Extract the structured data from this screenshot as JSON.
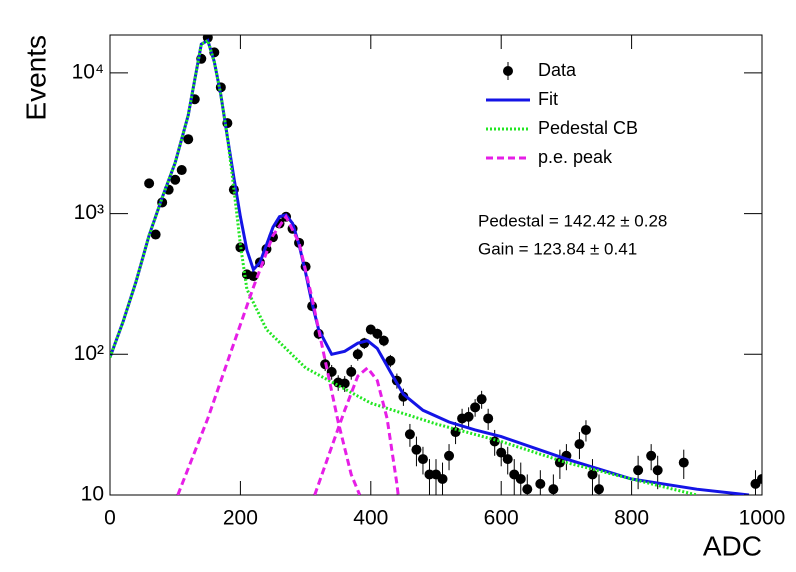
{
  "chart_data": {
    "type": "scatter",
    "xlabel": "ADC",
    "ylabel": "Events",
    "xlim": [
      0,
      1000
    ],
    "xticks": [
      0,
      200,
      400,
      600,
      800,
      1000
    ],
    "ylim": [
      10,
      18600
    ],
    "log_y": true,
    "yticks": [
      10,
      {
        "value": 100,
        "label": "10²"
      },
      {
        "value": 1000,
        "label": "10³"
      },
      {
        "value": 10000,
        "label": "10⁴"
      }
    ],
    "legend": "upper right",
    "annotations": [
      "Pedestal = 142.42 ± 0.28",
      "Gain = 123.84 ± 0.41"
    ],
    "series": [
      {
        "name": "Data",
        "style": "points",
        "color": "#000000",
        "x": [
          60,
          70,
          80,
          90,
          100,
          110,
          120,
          130,
          140,
          150,
          160,
          170,
          180,
          190,
          200,
          210,
          220,
          230,
          240,
          250,
          260,
          270,
          280,
          290,
          300,
          310,
          320,
          330,
          340,
          350,
          360,
          370,
          380,
          390,
          400,
          410,
          420,
          430,
          440,
          450,
          460,
          470,
          480,
          490,
          500,
          510,
          520,
          530,
          540,
          550,
          560,
          570,
          580,
          590,
          600,
          610,
          620,
          630,
          640,
          660,
          680,
          690,
          700,
          720,
          730,
          740,
          750,
          810,
          830,
          840,
          880,
          990,
          1000
        ],
        "values": [
          1640,
          710,
          1200,
          1480,
          1740,
          2040,
          3380,
          6500,
          12600,
          17800,
          14000,
          7900,
          4400,
          1480,
          575,
          370,
          360,
          450,
          560,
          680,
          850,
          950,
          780,
          620,
          420,
          220,
          140,
          85,
          75,
          63,
          62,
          75,
          100,
          120,
          150,
          140,
          125,
          90,
          65,
          50,
          27,
          21,
          18,
          14,
          14,
          13,
          19,
          28,
          35,
          36,
          42,
          48,
          35,
          24,
          20,
          18,
          14,
          13,
          11,
          12,
          11,
          17,
          19,
          23,
          29,
          14,
          11,
          15,
          19,
          15,
          17,
          12,
          13
        ],
        "errors": [
          40,
          27,
          35,
          38,
          42,
          45,
          58,
          81,
          112,
          133,
          118,
          89,
          66,
          38,
          24,
          19,
          19,
          21,
          24,
          26,
          29,
          31,
          28,
          25,
          20,
          15,
          12,
          9,
          9,
          8,
          8,
          9,
          10,
          11,
          12,
          12,
          11,
          9,
          8,
          7,
          5,
          5,
          4,
          4,
          4,
          4,
          4,
          5,
          6,
          6,
          6,
          7,
          6,
          5,
          4,
          4,
          4,
          4,
          3,
          3,
          3,
          4,
          4,
          5,
          5,
          4,
          3,
          4,
          4,
          4,
          4,
          3,
          4
        ]
      },
      {
        "name": "Fit",
        "style": "solid",
        "color": "#1414e6",
        "x": [
          0,
          20,
          40,
          60,
          80,
          100,
          120,
          140,
          150,
          160,
          170,
          180,
          190,
          200,
          210,
          220,
          230,
          240,
          250,
          260,
          270,
          280,
          290,
          300,
          310,
          320,
          340,
          360,
          380,
          395,
          410,
          430,
          450,
          480,
          520,
          560,
          600,
          700,
          800,
          900,
          980
        ],
        "values": [
          95,
          170,
          330,
          700,
          1300,
          2300,
          5000,
          16000,
          17000,
          12000,
          7000,
          3500,
          1800,
          950,
          550,
          400,
          450,
          600,
          800,
          950,
          980,
          850,
          600,
          380,
          230,
          150,
          100,
          105,
          120,
          125,
          110,
          75,
          52,
          40,
          33,
          29,
          26,
          18,
          13,
          11,
          10
        ]
      },
      {
        "name": "Pedestal CB",
        "style": "dotted",
        "color": "#22e622",
        "x": [
          0,
          20,
          40,
          60,
          80,
          100,
          120,
          140,
          150,
          160,
          170,
          180,
          190,
          200,
          210,
          240,
          300,
          350,
          400,
          500,
          600,
          700,
          800,
          900
        ],
        "values": [
          95,
          170,
          330,
          700,
          1300,
          2300,
          5000,
          16000,
          17000,
          12000,
          7000,
          3500,
          1500,
          600,
          290,
          150,
          80,
          60,
          45,
          32,
          24,
          17,
          13,
          10
        ]
      },
      {
        "name": "p.e. peak",
        "style": "dashed",
        "color": "#e61ee6",
        "x": [
          104,
          150,
          190,
          220,
          250,
          270,
          290,
          310,
          330,
          350,
          370,
          383,
          null,
          314,
          340,
          360,
          380,
          395,
          410,
          425,
          440,
          442
        ],
        "values": [
          10,
          35,
          120,
          300,
          700,
          950,
          620,
          250,
          90,
          33,
          14,
          10,
          null,
          10,
          22,
          40,
          70,
          80,
          65,
          35,
          12,
          10
        ]
      }
    ]
  }
}
